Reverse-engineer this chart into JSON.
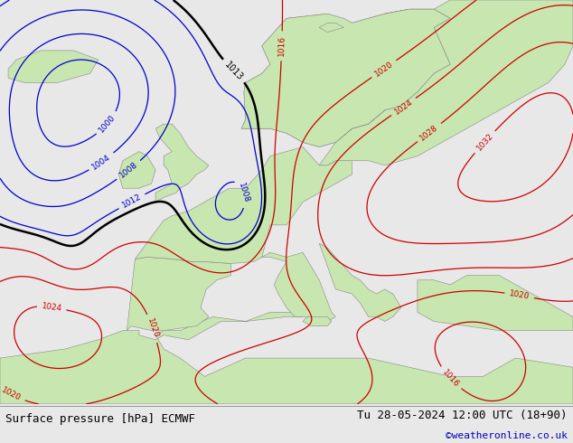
{
  "footer_left": "Surface pressure [hPa] ECMWF",
  "footer_right": "Tu 28-05-2024 12:00 UTC (18+90)",
  "footer_url": "©weatheronline.co.uk",
  "bg_land": "#c8e6b0",
  "bg_sea": "#e8e8e8",
  "bg_footer": "#d8d8d8",
  "contour_color_low": "#0000cc",
  "contour_color_high": "#cc0000",
  "contour_color_black": "#000000",
  "figsize": [
    6.34,
    4.9
  ],
  "dpi": 100,
  "footer_fontsize": 9,
  "url_color": "#0000bb"
}
